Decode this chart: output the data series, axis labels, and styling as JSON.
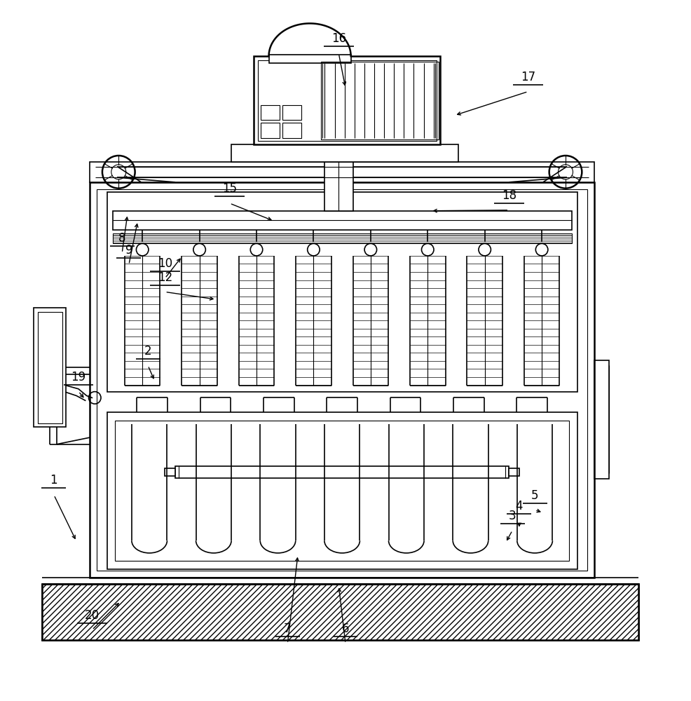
{
  "bg_color": "#ffffff",
  "line_color": "#000000",
  "label_color": "#000000",
  "fig_width": 9.86,
  "fig_height": 10.0,
  "annotations": [
    [
      1,
      0.072,
      0.3,
      0.105,
      0.22
    ],
    [
      2,
      0.21,
      0.49,
      0.22,
      0.455
    ],
    [
      3,
      0.745,
      0.248,
      0.735,
      0.218
    ],
    [
      4,
      0.755,
      0.262,
      0.755,
      0.238
    ],
    [
      5,
      0.778,
      0.278,
      0.79,
      0.262
    ],
    [
      6,
      0.5,
      0.082,
      0.49,
      0.155
    ],
    [
      7,
      0.415,
      0.082,
      0.43,
      0.2
    ],
    [
      8,
      0.172,
      0.655,
      0.18,
      0.7
    ],
    [
      9,
      0.182,
      0.638,
      0.195,
      0.69
    ],
    [
      10,
      0.235,
      0.618,
      0.26,
      0.638
    ],
    [
      12,
      0.235,
      0.598,
      0.31,
      0.575
    ],
    [
      15,
      0.33,
      0.728,
      0.395,
      0.69
    ],
    [
      16,
      0.49,
      0.948,
      0.5,
      0.885
    ],
    [
      17,
      0.768,
      0.892,
      0.66,
      0.845
    ],
    [
      18,
      0.74,
      0.718,
      0.625,
      0.705
    ],
    [
      19,
      0.108,
      0.452,
      0.118,
      0.428
    ],
    [
      20,
      0.128,
      0.102,
      0.17,
      0.132
    ]
  ]
}
